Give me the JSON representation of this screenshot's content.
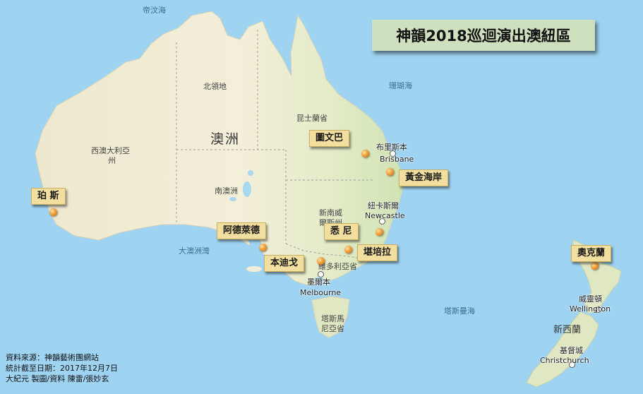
{
  "title": "神韻2018巡迴演出澳紐區",
  "seas": {
    "timor": "帝汶海",
    "coral": "珊瑚海",
    "gab": "大澳洲灣",
    "tasman": "塔斯曼海"
  },
  "regions": {
    "nt": "北領地",
    "qld": "昆士蘭省",
    "wa_1": "西澳大利亞",
    "wa_2": "州",
    "sa": "南澳洲",
    "nsw_1": "新南威",
    "nsw_2": "爾斯州",
    "vic": "維多利亞省",
    "tas_1": "塔斯馬",
    "tas_2": "尼亞省",
    "continent": "澳洲",
    "nz": "新西蘭"
  },
  "cities": {
    "brisbane_zh": "布里斯本",
    "brisbane_en": "Brisbane",
    "newcastle_zh": "紐卡斯爾",
    "newcastle_en": "Newcastle",
    "melbourne_zh": "墨爾本",
    "melbourne_en": "Melbourne",
    "wellington_zh": "威靈頓",
    "wellington_en": "Wellington",
    "christchurch_zh": "基督城",
    "christchurch_en": "Christchurch"
  },
  "venues": {
    "toowoomba": "圖文巴",
    "goldcoast": "黃金海岸",
    "perth": "珀 斯",
    "adelaide": "阿德萊德",
    "sydney": "悉 尼",
    "canberra": "堪培拉",
    "bendigo": "本迪戈",
    "auckland": "奧克蘭"
  },
  "source": {
    "line1": "資料來源：神韻藝術團網站",
    "line2": "統計截至日期：2017年12月7日",
    "line3": "大紀元 製圖/資料 陳雷/張妙玄"
  },
  "colors": {
    "ocean": "#9fd3f2",
    "land": "#f3eed9",
    "green_land": "#cfe3b3",
    "label_bg": "#f2de9e",
    "title_bg": "#cfe0bf",
    "pin": "#f1a23b"
  }
}
